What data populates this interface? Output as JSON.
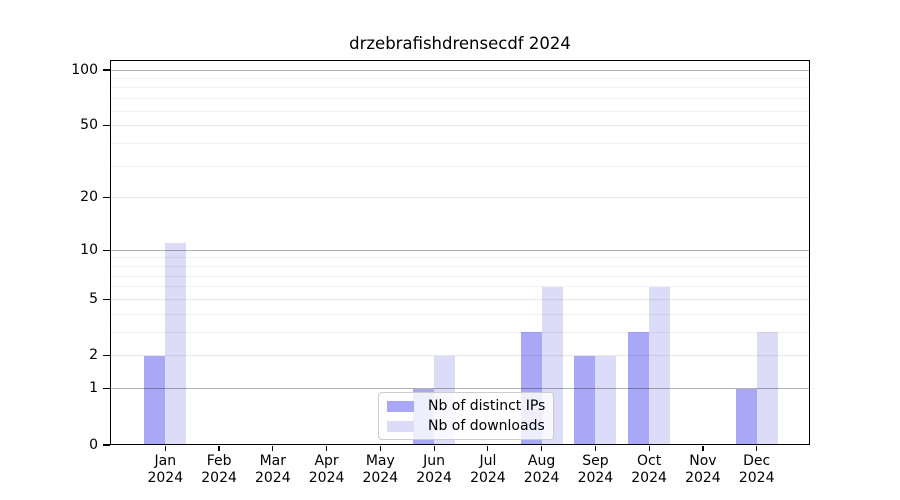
{
  "chart_data": {
    "type": "bar",
    "title": "drzebrafishdrensecdf 2024",
    "categories": [
      "Jan 2024",
      "Feb 2024",
      "Mar 2024",
      "Apr 2024",
      "May 2024",
      "Jun 2024",
      "Jul 2024",
      "Aug 2024",
      "Sep 2024",
      "Oct 2024",
      "Nov 2024",
      "Dec 2024"
    ],
    "series": [
      {
        "name": "Nb of distinct IPs",
        "color": "#a8a8f6",
        "values": [
          2,
          0,
          0,
          0,
          0,
          1,
          0,
          3,
          2,
          3,
          0,
          1
        ]
      },
      {
        "name": "Nb of downloads",
        "color": "#dcdcf8",
        "values": [
          11,
          0,
          0,
          0,
          0,
          2,
          0,
          6,
          2,
          6,
          0,
          3
        ]
      }
    ],
    "xlabel": "",
    "ylabel": "",
    "y_scale": "log1p",
    "ylim": [
      0,
      113
    ],
    "y_major_ticks": [
      0,
      1,
      2,
      5,
      10,
      20,
      50,
      100
    ],
    "y_tick_labels": [
      "0",
      "1",
      "2",
      "5",
      "10",
      "20",
      "50",
      "100"
    ],
    "y_decade_ticks": [
      1,
      10,
      100
    ],
    "y_minor_ticks": [
      3,
      4,
      6,
      7,
      8,
      9,
      30,
      40,
      60,
      70,
      80,
      90
    ],
    "grid": "horizontal",
    "legend": {
      "position": "lower center",
      "entries": [
        "Nb of distinct IPs",
        "Nb of downloads"
      ]
    }
  }
}
